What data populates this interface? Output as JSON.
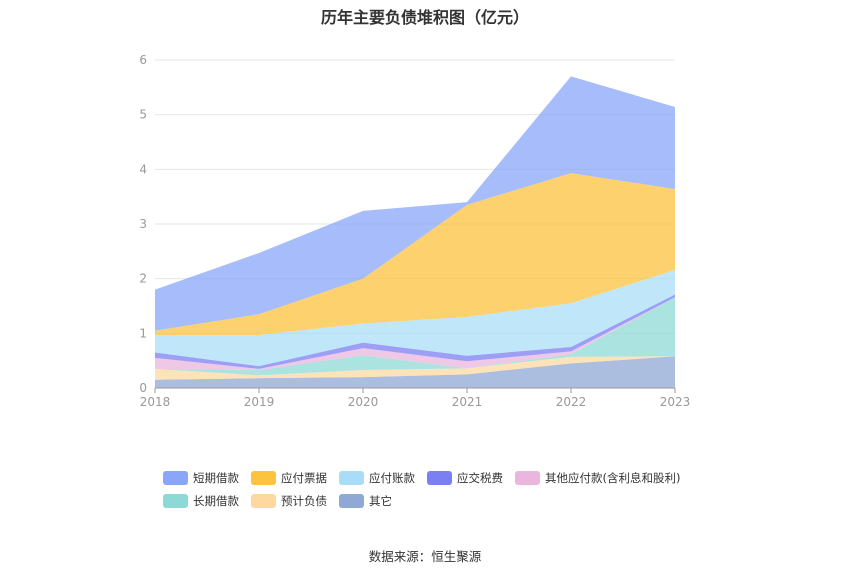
{
  "chart_data": {
    "type": "area",
    "stacked": true,
    "title": "历年主要负债堆积图（亿元）",
    "x": [
      "2018",
      "2019",
      "2020",
      "2021",
      "2022",
      "2023"
    ],
    "ylim": [
      0,
      6
    ],
    "yticks": [
      "0",
      "1",
      "2",
      "3",
      "4",
      "5",
      "6"
    ],
    "grid": true,
    "legend_position": "bottom",
    "series": [
      {
        "name": "其它",
        "color": "#8fa8d6",
        "values": [
          0.15,
          0.18,
          0.2,
          0.25,
          0.45,
          0.58
        ]
      },
      {
        "name": "预计负债",
        "color": "#fdd9a0",
        "values": [
          0.2,
          0.05,
          0.13,
          0.11,
          0.12,
          0.0
        ]
      },
      {
        "name": "长期借款",
        "color": "#8dd9d6",
        "values": [
          0.0,
          0.1,
          0.27,
          0.0,
          0.05,
          1.08
        ]
      },
      {
        "name": "其他应付款(含利息和股利)",
        "color": "#eab6de",
        "values": [
          0.2,
          0.02,
          0.13,
          0.13,
          0.05,
          0.0
        ]
      },
      {
        "name": "应交税费",
        "color": "#7b7ff2",
        "values": [
          0.1,
          0.05,
          0.1,
          0.1,
          0.08,
          0.05
        ]
      },
      {
        "name": "应付账款",
        "color": "#a9ddf7",
        "values": [
          0.32,
          0.57,
          0.35,
          0.71,
          0.8,
          0.45
        ]
      },
      {
        "name": "应付票据",
        "color": "#fcc33e",
        "values": [
          0.08,
          0.38,
          0.82,
          2.05,
          2.38,
          1.48
        ]
      },
      {
        "name": "短期借款",
        "color": "#8aa6f8",
        "values": [
          0.75,
          1.12,
          1.24,
          0.05,
          1.77,
          1.5
        ]
      }
    ],
    "legend_order": [
      "短期借款",
      "应付票据",
      "应付账款",
      "应交税费",
      "其他应付款(含利息和股利)",
      "长期借款",
      "预计负债",
      "其它"
    ]
  },
  "source_label": "数据来源：",
  "source_name": "恒生聚源"
}
